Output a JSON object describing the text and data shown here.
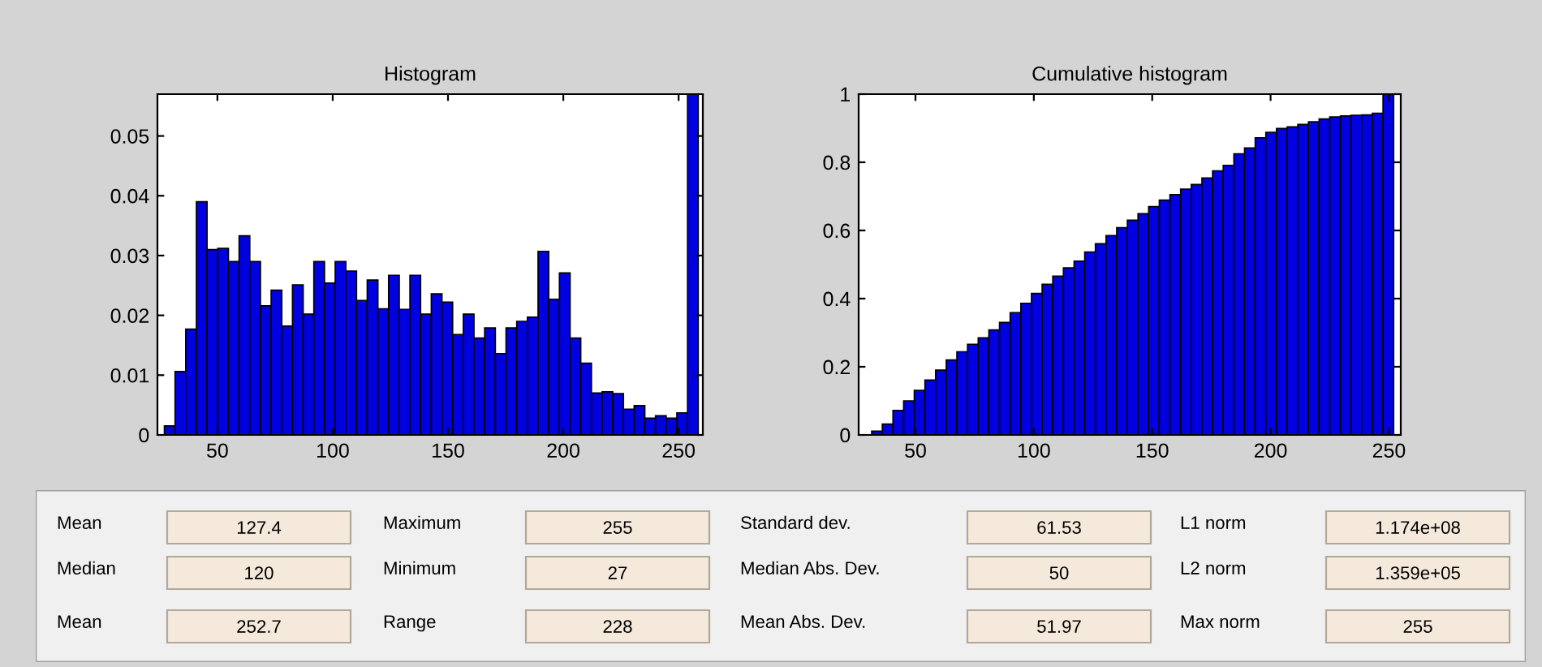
{
  "chart_data": [
    {
      "type": "histogram",
      "title": "Histogram",
      "color": "#0000e0",
      "xlim": [
        24,
        260.5
      ],
      "xticks": [
        50,
        100,
        150,
        200,
        250
      ],
      "ylim": [
        0,
        0.057
      ],
      "yticks": [
        0,
        0.01,
        0.02,
        0.03,
        0.04,
        0.05
      ],
      "grid": false,
      "bins": [
        27,
        31.63,
        36.26,
        40.89,
        45.52,
        50.15,
        54.78,
        59.41,
        64.04,
        68.67,
        73.3,
        77.93,
        82.56,
        87.19,
        91.82,
        96.45,
        101.08,
        105.71,
        110.34,
        114.97,
        119.6,
        124.23,
        128.86,
        133.49,
        138.12,
        142.75,
        147.38,
        152.01,
        156.64,
        161.27,
        165.9,
        170.53,
        175.16,
        179.79,
        184.42,
        189.05,
        193.68,
        198.31,
        202.94,
        207.57,
        212.2,
        216.83,
        221.46,
        226.09,
        230.72,
        235.35,
        239.98,
        244.61,
        249.24,
        253.87,
        258.5
      ],
      "values": [
        0.0015,
        0.0106,
        0.0177,
        0.039,
        0.031,
        0.0312,
        0.029,
        0.0333,
        0.029,
        0.0216,
        0.0242,
        0.0182,
        0.0251,
        0.0202,
        0.029,
        0.0254,
        0.029,
        0.0274,
        0.0225,
        0.0259,
        0.0211,
        0.0267,
        0.021,
        0.0267,
        0.0202,
        0.0236,
        0.0222,
        0.0168,
        0.0202,
        0.0162,
        0.0179,
        0.0136,
        0.0179,
        0.019,
        0.0197,
        0.0307,
        0.0227,
        0.0271,
        0.0162,
        0.012,
        0.007,
        0.0072,
        0.0069,
        0.0043,
        0.0049,
        0.0028,
        0.0032,
        0.0028,
        0.0037,
        0.057
      ]
    },
    {
      "type": "histogram",
      "title": "Cumulative histogram",
      "color": "#0000e0",
      "xlim": [
        26,
        255
      ],
      "xticks": [
        50,
        100,
        150,
        200,
        250
      ],
      "ylim": [
        0,
        1
      ],
      "yticks": [
        0,
        0.2,
        0.4,
        0.6,
        0.8,
        1
      ],
      "grid": false,
      "bins": [
        27,
        31.5,
        36,
        40.5,
        45,
        49.5,
        54,
        58.5,
        63,
        67.5,
        72,
        76.5,
        81,
        85.5,
        90,
        94.5,
        99,
        103.5,
        108,
        112.5,
        117,
        121.5,
        126,
        130.5,
        135,
        139.5,
        144,
        148.5,
        153,
        157.5,
        162,
        166.5,
        171,
        175.5,
        180,
        184.5,
        189,
        193.5,
        198,
        202.5,
        207,
        211.5,
        216,
        220.5,
        225,
        229.5,
        234,
        238.5,
        243,
        247.5,
        252
      ],
      "values": [
        null,
        0.011,
        0.032,
        0.072,
        0.1,
        0.131,
        0.161,
        0.19,
        0.22,
        0.244,
        0.266,
        0.285,
        0.308,
        0.33,
        0.359,
        0.386,
        0.415,
        0.442,
        0.466,
        0.49,
        0.51,
        0.537,
        0.561,
        0.585,
        0.608,
        0.63,
        0.649,
        0.67,
        0.689,
        0.705,
        0.721,
        0.735,
        0.754,
        0.775,
        0.791,
        0.825,
        0.842,
        0.872,
        0.888,
        0.899,
        0.904,
        0.911,
        0.919,
        0.927,
        0.933,
        0.936,
        0.938,
        0.939,
        0.944,
        1
      ]
    },
    {
      "type": "other",
      "annotations": [
        "Mean",
        "127.4",
        "Maximum",
        "255",
        "Standard dev.",
        "61.53",
        "L1 norm",
        "1.174e+08",
        "Median",
        "120",
        "Minimum",
        "27",
        "Median Abs. Dev.",
        "50",
        "L2 norm",
        "1.359e+05",
        "Mean",
        "252.7",
        "Range",
        "228",
        "Mean Abs. Dev.",
        "51.97",
        "Max norm",
        "255"
      ]
    }
  ]
}
